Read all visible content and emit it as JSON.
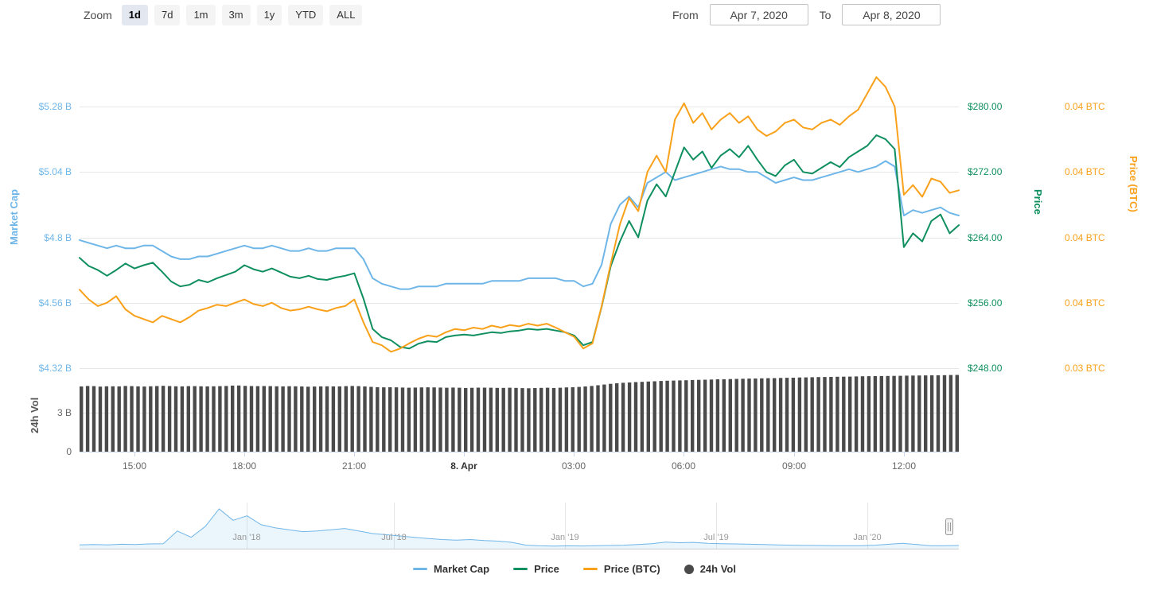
{
  "toolbar": {
    "zoom_label": "Zoom",
    "buttons": [
      "1d",
      "7d",
      "1m",
      "3m",
      "1y",
      "YTD",
      "ALL"
    ],
    "selected": "1d",
    "from_label": "From",
    "from_value": "Apr 7, 2020",
    "to_label": "To",
    "to_value": "Apr 8, 2020"
  },
  "theme": {
    "market_cap": "#6fb6e8",
    "price": "#0f8f5f",
    "price_btc": "#f9a11b",
    "volume": "#4a4a4a",
    "grid": "#e6e6e6",
    "axis_line": "#ccd6eb",
    "axis_label": "#666666",
    "nav_label": "#999999"
  },
  "chart_data": {
    "type": "line",
    "title": "",
    "x_start": "Apr 7, 2020 13:30",
    "x_end": "Apr 8, 2020 13:30",
    "x_step_minutes": 15,
    "x_tick_labels": [
      "15:00",
      "18:00",
      "21:00",
      "8. Apr",
      "03:00",
      "06:00",
      "09:00",
      "12:00"
    ],
    "grid": "horizontal",
    "legend_position": "bottom",
    "series": [
      {
        "name": "Market Cap",
        "type": "line",
        "unit": "USD billions",
        "color": "#6fb6e8",
        "axis": {
          "side": "left",
          "ticks": [
            "$5.28 B",
            "$5.04 B",
            "$4.8 B",
            "$4.56 B",
            "$4.32 B"
          ],
          "range": [
            4.32,
            5.28
          ]
        },
        "values": [
          4.79,
          4.78,
          4.77,
          4.76,
          4.77,
          4.76,
          4.76,
          4.77,
          4.77,
          4.75,
          4.73,
          4.72,
          4.72,
          4.73,
          4.73,
          4.74,
          4.75,
          4.76,
          4.77,
          4.76,
          4.76,
          4.77,
          4.76,
          4.75,
          4.75,
          4.76,
          4.75,
          4.75,
          4.76,
          4.76,
          4.76,
          4.72,
          4.65,
          4.63,
          4.62,
          4.61,
          4.61,
          4.62,
          4.62,
          4.62,
          4.63,
          4.63,
          4.63,
          4.63,
          4.63,
          4.64,
          4.64,
          4.64,
          4.64,
          4.65,
          4.65,
          4.65,
          4.65,
          4.64,
          4.64,
          4.62,
          4.63,
          4.7,
          4.85,
          4.92,
          4.95,
          4.91,
          5.0,
          5.02,
          5.04,
          5.01,
          5.02,
          5.03,
          5.04,
          5.05,
          5.06,
          5.05,
          5.05,
          5.04,
          5.04,
          5.02,
          5.0,
          5.01,
          5.02,
          5.01,
          5.01,
          5.02,
          5.03,
          5.04,
          5.05,
          5.04,
          5.05,
          5.06,
          5.08,
          5.06,
          4.88,
          4.9,
          4.89,
          4.9,
          4.91,
          4.89,
          4.88
        ]
      },
      {
        "name": "Price",
        "type": "line",
        "unit": "USD",
        "color": "#0f8f5f",
        "axis": {
          "side": "right",
          "ticks": [
            "$280.00",
            "$272.00",
            "$264.00",
            "$256.00",
            "$248.00"
          ],
          "range": [
            248,
            280
          ]
        },
        "values": [
          261.5,
          260.5,
          260.0,
          259.3,
          260.0,
          260.8,
          260.2,
          260.6,
          260.9,
          259.8,
          258.6,
          258.0,
          258.2,
          258.8,
          258.5,
          259.0,
          259.4,
          259.8,
          260.6,
          260.1,
          259.8,
          260.2,
          259.7,
          259.2,
          259.0,
          259.3,
          258.9,
          258.8,
          259.1,
          259.3,
          259.6,
          256.5,
          252.8,
          251.8,
          251.4,
          250.6,
          250.4,
          251.0,
          251.3,
          251.2,
          251.8,
          252.0,
          252.1,
          252.0,
          252.2,
          252.4,
          252.3,
          252.5,
          252.6,
          252.8,
          252.7,
          252.8,
          252.6,
          252.4,
          252.0,
          250.8,
          251.2,
          255.5,
          260.5,
          263.5,
          266.0,
          264.0,
          268.5,
          270.5,
          269.0,
          272.0,
          275.0,
          273.5,
          274.5,
          272.5,
          274.0,
          274.8,
          273.8,
          275.2,
          273.5,
          272.0,
          271.5,
          272.8,
          273.5,
          272.0,
          271.8,
          272.5,
          273.2,
          272.6,
          273.8,
          274.5,
          275.2,
          276.5,
          276.0,
          274.8,
          262.8,
          264.5,
          263.5,
          266.0,
          266.8,
          264.5,
          265.5
        ]
      },
      {
        "name": "Price (BTC)",
        "type": "line",
        "unit": "BTC",
        "color": "#f9a11b",
        "axis": {
          "side": "far-right",
          "ticks": [
            "0.04 BTC",
            "0.04 BTC",
            "0.04 BTC",
            "0.04 BTC",
            "0.03 BTC"
          ],
          "range": [
            0.034,
            0.038
          ]
        },
        "values": [
          0.0352,
          0.03505,
          0.03495,
          0.035,
          0.0351,
          0.0349,
          0.0348,
          0.03475,
          0.0347,
          0.0348,
          0.03475,
          0.0347,
          0.03478,
          0.03488,
          0.03492,
          0.03497,
          0.03495,
          0.035,
          0.03505,
          0.03498,
          0.03495,
          0.035,
          0.03492,
          0.03488,
          0.0349,
          0.03494,
          0.0349,
          0.03487,
          0.03492,
          0.03495,
          0.03505,
          0.0347,
          0.0344,
          0.03435,
          0.03425,
          0.0343,
          0.03438,
          0.03445,
          0.0345,
          0.03448,
          0.03455,
          0.0346,
          0.03458,
          0.03462,
          0.0346,
          0.03465,
          0.03462,
          0.03466,
          0.03464,
          0.03468,
          0.03465,
          0.03468,
          0.03462,
          0.03455,
          0.03448,
          0.0343,
          0.03438,
          0.03495,
          0.0356,
          0.0362,
          0.0366,
          0.0364,
          0.037,
          0.03725,
          0.037,
          0.0378,
          0.03805,
          0.03775,
          0.0379,
          0.03765,
          0.0378,
          0.0379,
          0.03775,
          0.03785,
          0.03765,
          0.03755,
          0.03762,
          0.03775,
          0.0378,
          0.03768,
          0.03765,
          0.03775,
          0.0378,
          0.03772,
          0.03785,
          0.03795,
          0.0382,
          0.03845,
          0.0383,
          0.038,
          0.03665,
          0.0368,
          0.03662,
          0.0369,
          0.03685,
          0.03668,
          0.03672
        ]
      },
      {
        "name": "24h Vol",
        "type": "bar",
        "unit": "USD billions",
        "color": "#4a4a4a",
        "axis": {
          "side": "left",
          "ticks": [
            "3 B",
            "0"
          ],
          "range": [
            0,
            6.4
          ]
        },
        "values": [
          5.0,
          5.05,
          4.98,
          5.02,
          5.0,
          5.04,
          5.01,
          4.99,
          5.02,
          5.05,
          5.02,
          5.0,
          5.03,
          5.01,
          5.0,
          5.02,
          5.04,
          5.08,
          5.04,
          5.02,
          5.03,
          5.02,
          5.0,
          5.02,
          5.0,
          4.98,
          5.0,
          5.01,
          5.0,
          5.02,
          5.04,
          5.0,
          4.96,
          4.93,
          4.94,
          4.92,
          4.9,
          4.92,
          4.93,
          4.92,
          4.9,
          4.92,
          4.88,
          4.9,
          4.91,
          4.9,
          4.88,
          4.9,
          4.88,
          4.86,
          4.88,
          4.9,
          4.88,
          4.92,
          4.94,
          4.98,
          5.04,
          5.12,
          5.2,
          5.26,
          5.3,
          5.34,
          5.37,
          5.4,
          5.43,
          5.45,
          5.47,
          5.49,
          5.51,
          5.53,
          5.55,
          5.56,
          5.58,
          5.6,
          5.61,
          5.63,
          5.64,
          5.66,
          5.67,
          5.69,
          5.7,
          5.72,
          5.73,
          5.74,
          5.75,
          5.77,
          5.78,
          5.79,
          5.8,
          5.81,
          5.82,
          5.83,
          5.84,
          5.85,
          5.86,
          5.87,
          5.88
        ]
      }
    ],
    "navigator": {
      "type": "area",
      "unit": "USD billions (Market Cap, full history)",
      "x_labels": [
        "Jan '18",
        "Jul '18",
        "Jan '19",
        "Jul '19",
        "Jan '20"
      ],
      "values": [
        6,
        6.5,
        6,
        7,
        6.5,
        7.5,
        8,
        28,
        18,
        35,
        63,
        45,
        52,
        38,
        33,
        30,
        27,
        28,
        30,
        32,
        28,
        24,
        22,
        20,
        18,
        16,
        14.5,
        13.5,
        14.5,
        13,
        12,
        10,
        5.5,
        4.5,
        4.2,
        4.5,
        4.3,
        4.6,
        5,
        5.5,
        6.5,
        8,
        10.5,
        9.5,
        10,
        8.5,
        8,
        7.5,
        7,
        6.5,
        6,
        5.5,
        5.2,
        5,
        4.8,
        4.6,
        4.8,
        5.5,
        7,
        8.5,
        6.5,
        4.5,
        4.8,
        5
      ]
    }
  }
}
